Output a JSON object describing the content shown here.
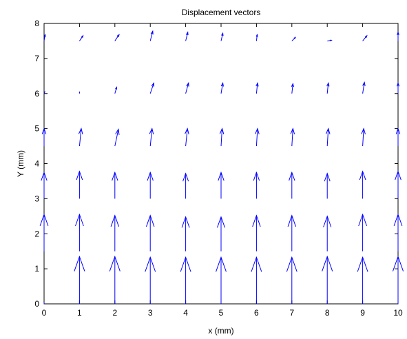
{
  "chart_data": {
    "type": "quiver",
    "title": "Displacement vectors",
    "xlabel": "x (mm)",
    "ylabel": "Y (mm)",
    "xlim": [
      0,
      10
    ],
    "ylim": [
      0,
      8
    ],
    "xticks": [
      0,
      1,
      2,
      3,
      4,
      5,
      6,
      7,
      8,
      9,
      10
    ],
    "yticks": [
      0,
      1,
      2,
      3,
      4,
      5,
      6,
      7,
      8
    ],
    "grid": false,
    "color": "#0000ff",
    "rows": [
      {
        "y": 0.0,
        "vectors": [
          {
            "x": 0,
            "u": 0.0,
            "v": 0.03
          },
          {
            "x": 1,
            "u": 0.0,
            "v": 1.35
          },
          {
            "x": 2,
            "u": 0.0,
            "v": 1.35
          },
          {
            "x": 3,
            "u": 0.0,
            "v": 1.33
          },
          {
            "x": 4,
            "u": 0.0,
            "v": 1.33
          },
          {
            "x": 5,
            "u": 0.0,
            "v": 1.33
          },
          {
            "x": 6,
            "u": 0.0,
            "v": 1.33
          },
          {
            "x": 7,
            "u": 0.0,
            "v": 1.33
          },
          {
            "x": 8,
            "u": 0.0,
            "v": 1.35
          },
          {
            "x": 9,
            "u": 0.0,
            "v": 1.33
          },
          {
            "x": 10,
            "u": 0.0,
            "v": 1.35
          }
        ]
      },
      {
        "y": 1.5,
        "vectors": [
          {
            "x": 0,
            "u": 0.0,
            "v": 1.05
          },
          {
            "x": 1,
            "u": 0.0,
            "v": 1.05
          },
          {
            "x": 2,
            "u": 0.0,
            "v": 1.02
          },
          {
            "x": 3,
            "u": 0.0,
            "v": 1.02
          },
          {
            "x": 4,
            "u": 0.0,
            "v": 0.98
          },
          {
            "x": 5,
            "u": 0.0,
            "v": 0.98
          },
          {
            "x": 6,
            "u": 0.0,
            "v": 1.02
          },
          {
            "x": 7,
            "u": 0.0,
            "v": 1.02
          },
          {
            "x": 8,
            "u": 0.0,
            "v": 1.0
          },
          {
            "x": 9,
            "u": 0.0,
            "v": 1.05
          },
          {
            "x": 10,
            "u": 0.0,
            "v": 1.05
          }
        ]
      },
      {
        "y": 3.0,
        "vectors": [
          {
            "x": 0,
            "u": 0.0,
            "v": 0.75
          },
          {
            "x": 1,
            "u": 0.0,
            "v": 0.78
          },
          {
            "x": 2,
            "u": 0.0,
            "v": 0.75
          },
          {
            "x": 3,
            "u": 0.0,
            "v": 0.75
          },
          {
            "x": 4,
            "u": 0.0,
            "v": 0.72
          },
          {
            "x": 5,
            "u": 0.0,
            "v": 0.75
          },
          {
            "x": 6,
            "u": 0.0,
            "v": 0.75
          },
          {
            "x": 7,
            "u": 0.0,
            "v": 0.75
          },
          {
            "x": 8,
            "u": 0.0,
            "v": 0.72
          },
          {
            "x": 9,
            "u": 0.0,
            "v": 0.78
          },
          {
            "x": 10,
            "u": 0.0,
            "v": 0.78
          }
        ]
      },
      {
        "y": 4.5,
        "vectors": [
          {
            "x": 0,
            "u": 0.0,
            "v": 0.5
          },
          {
            "x": 1,
            "u": 0.05,
            "v": 0.5
          },
          {
            "x": 2,
            "u": 0.1,
            "v": 0.48
          },
          {
            "x": 3,
            "u": 0.05,
            "v": 0.5
          },
          {
            "x": 4,
            "u": 0.05,
            "v": 0.5
          },
          {
            "x": 5,
            "u": 0.03,
            "v": 0.5
          },
          {
            "x": 6,
            "u": 0.03,
            "v": 0.5
          },
          {
            "x": 7,
            "u": 0.03,
            "v": 0.5
          },
          {
            "x": 8,
            "u": 0.03,
            "v": 0.5
          },
          {
            "x": 9,
            "u": 0.03,
            "v": 0.5
          },
          {
            "x": 10,
            "u": 0.0,
            "v": 0.5
          }
        ]
      },
      {
        "y": 6.0,
        "vectors": [
          {
            "x": 0,
            "u": 0.02,
            "v": 0.05
          },
          {
            "x": 1,
            "u": 0.0,
            "v": 0.04
          },
          {
            "x": 2,
            "u": 0.05,
            "v": 0.18
          },
          {
            "x": 3,
            "u": 0.1,
            "v": 0.3
          },
          {
            "x": 4,
            "u": 0.08,
            "v": 0.3
          },
          {
            "x": 5,
            "u": 0.05,
            "v": 0.3
          },
          {
            "x": 6,
            "u": 0.03,
            "v": 0.3
          },
          {
            "x": 7,
            "u": 0.03,
            "v": 0.28
          },
          {
            "x": 8,
            "u": 0.03,
            "v": 0.3
          },
          {
            "x": 9,
            "u": 0.05,
            "v": 0.32
          },
          {
            "x": 10,
            "u": 0.0,
            "v": 0.3
          }
        ]
      },
      {
        "y": 7.5,
        "vectors": [
          {
            "x": 0,
            "u": 0.03,
            "v": 0.18
          },
          {
            "x": 1,
            "u": 0.1,
            "v": 0.15
          },
          {
            "x": 2,
            "u": 0.12,
            "v": 0.18
          },
          {
            "x": 3,
            "u": 0.07,
            "v": 0.28
          },
          {
            "x": 4,
            "u": 0.06,
            "v": 0.25
          },
          {
            "x": 5,
            "u": 0.05,
            "v": 0.22
          },
          {
            "x": 6,
            "u": 0.02,
            "v": 0.18
          },
          {
            "x": 7,
            "u": 0.1,
            "v": 0.1
          },
          {
            "x": 8,
            "u": 0.12,
            "v": 0.02
          },
          {
            "x": 9,
            "u": 0.12,
            "v": 0.15
          },
          {
            "x": 10,
            "u": 0.0,
            "v": 0.25
          }
        ]
      }
    ]
  }
}
